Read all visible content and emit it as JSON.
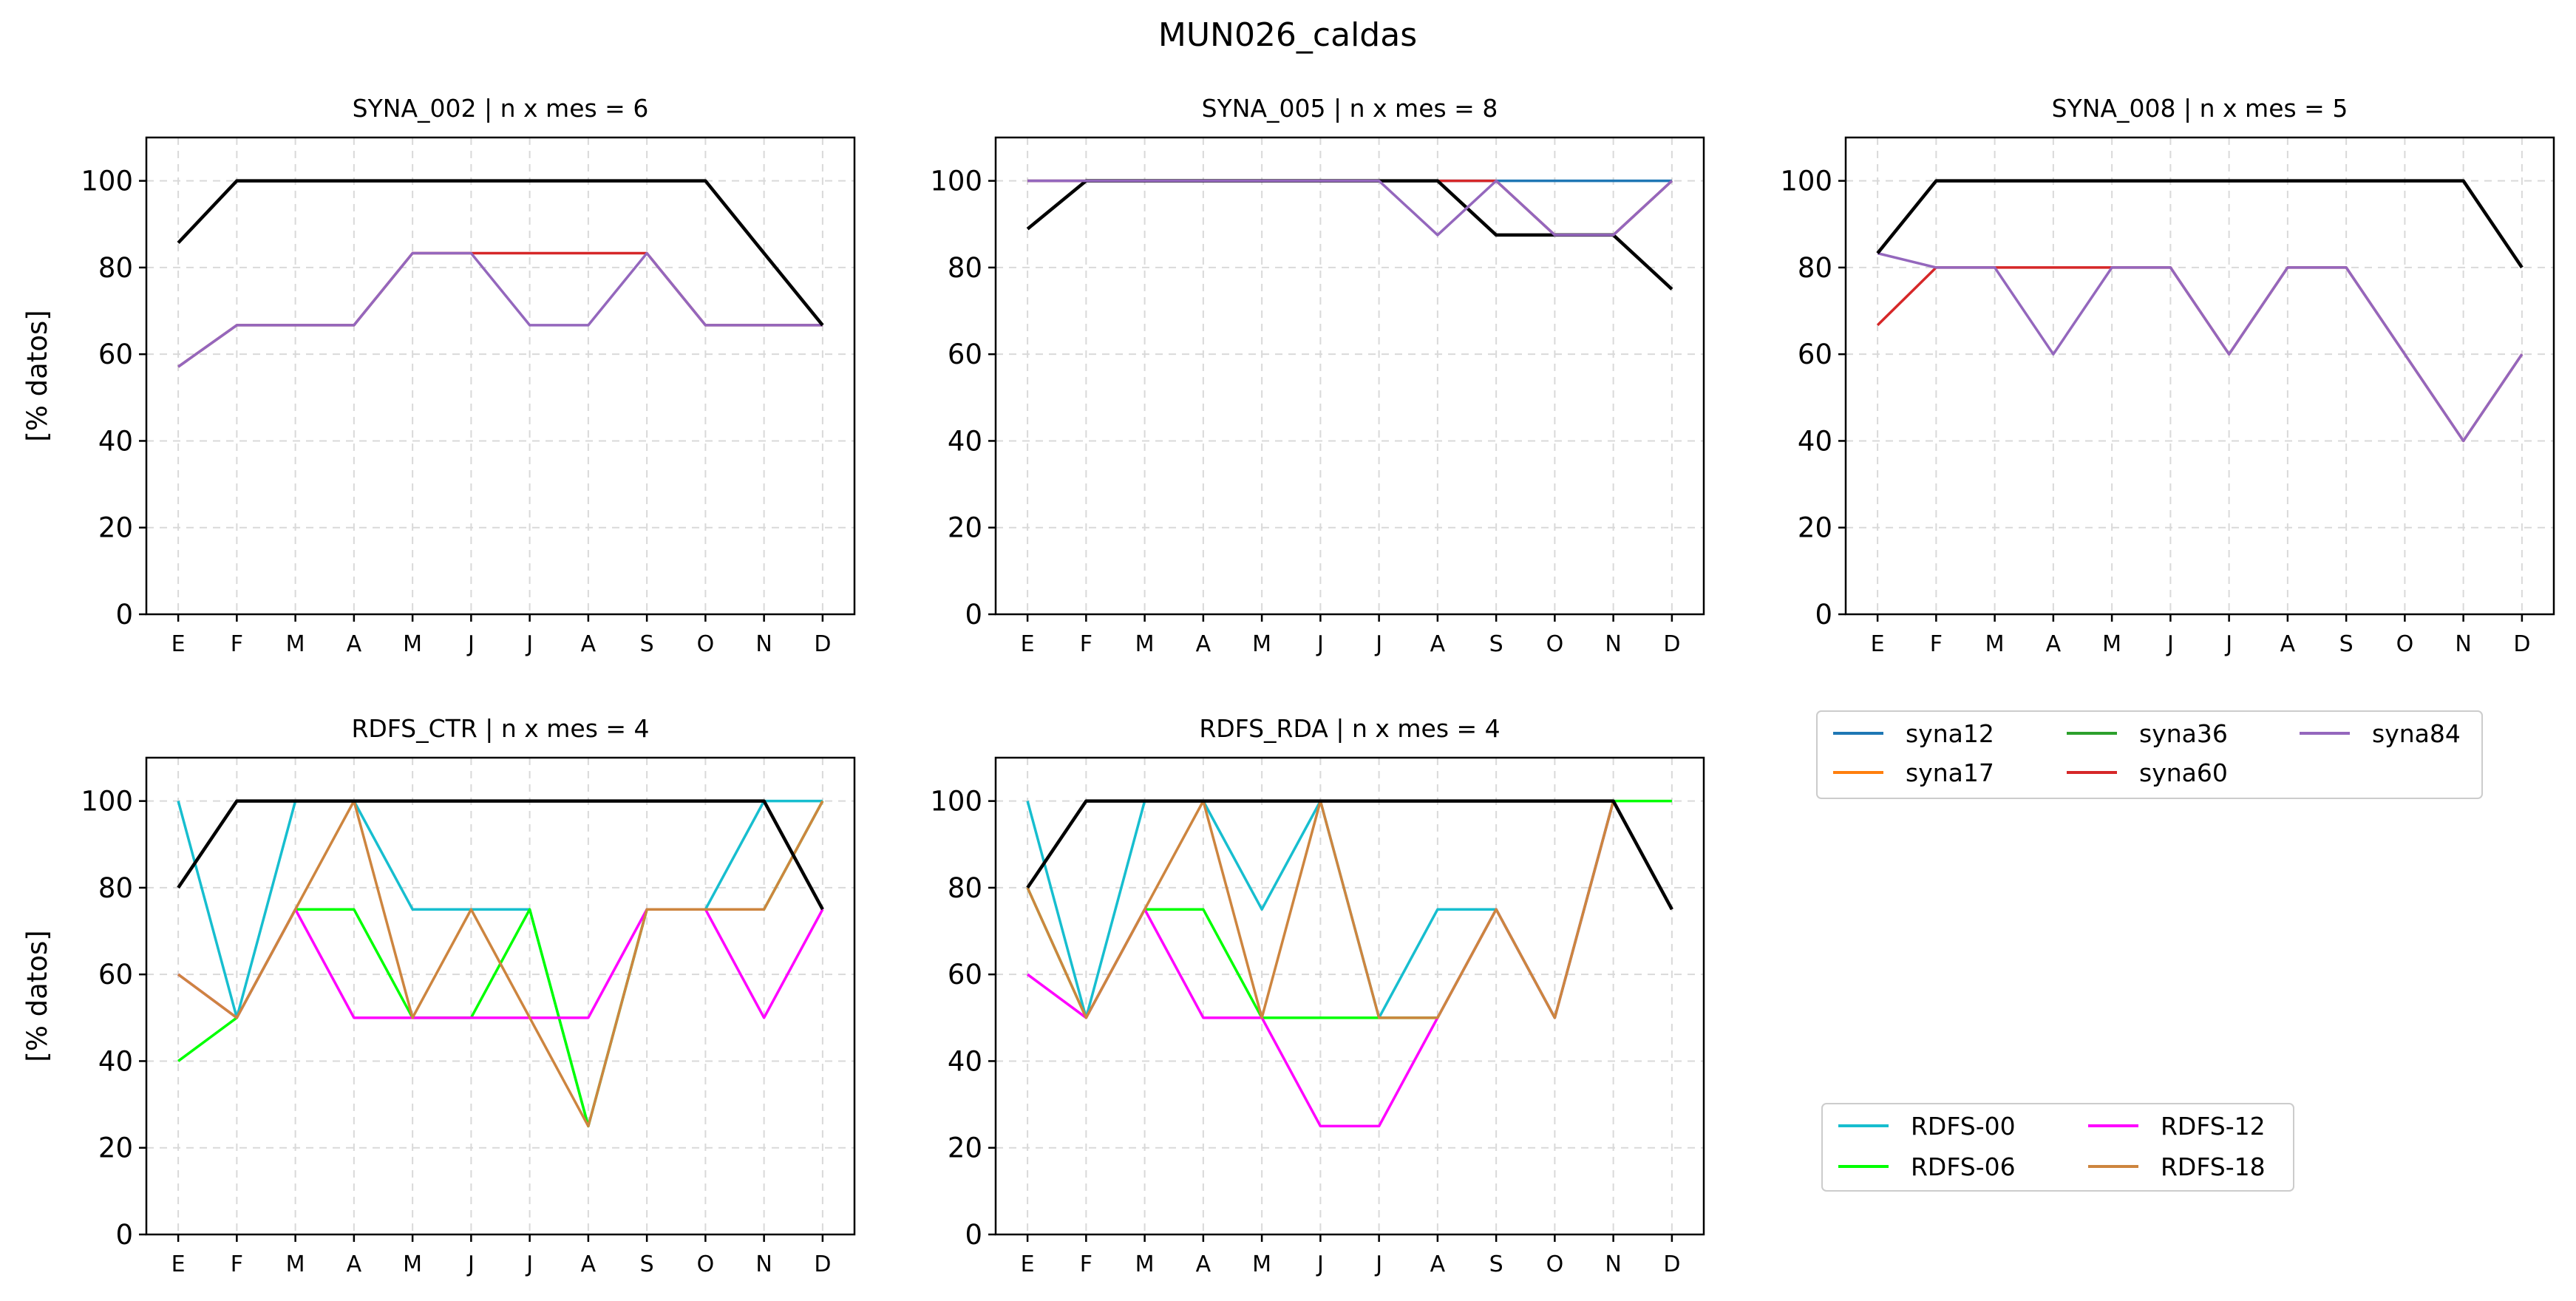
{
  "figure_title": "MUN026_caldas",
  "colors": {
    "obs": "#000000",
    "syna12": "#1f77b4",
    "syna17": "#ff7f0e",
    "syna36": "#2ca02c",
    "syna60": "#d62728",
    "syna84": "#9467bd",
    "RDFS-00": "#17becf",
    "RDFS-06": "#00ff00",
    "RDFS-12": "#ff00ff",
    "RDFS-18": "#cd853f"
  },
  "legends": {
    "syna": [
      "syna12",
      "syna17",
      "syna36",
      "syna60",
      "syna84"
    ],
    "rdfs": [
      "RDFS-00",
      "RDFS-06",
      "RDFS-12",
      "RDFS-18"
    ]
  },
  "chart_data": [
    {
      "type": "line",
      "title": "SYNA_002 | n x mes =  6",
      "xlabel": "",
      "ylabel": "[% datos]",
      "categories": [
        "E",
        "F",
        "M",
        "A",
        "M",
        "J",
        "J",
        "A",
        "S",
        "O",
        "N",
        "D"
      ],
      "ylim": [
        0,
        110
      ],
      "yticks": [
        0,
        20,
        40,
        60,
        80,
        100
      ],
      "grid": true,
      "series": [
        {
          "color_key": "syna60",
          "values": [
            57.1,
            66.7,
            66.7,
            66.7,
            83.3,
            83.3,
            83.3,
            83.3,
            83.3,
            66.7,
            66.7,
            66.7
          ]
        },
        {
          "color_key": "syna84",
          "values": [
            57.1,
            66.7,
            66.7,
            66.7,
            83.3,
            83.3,
            66.7,
            66.7,
            83.3,
            66.7,
            66.7,
            66.7
          ]
        },
        {
          "color_key": "obs",
          "values": [
            85.7,
            100,
            100,
            100,
            100,
            100,
            100,
            100,
            100,
            100,
            83.3,
            66.7
          ]
        }
      ]
    },
    {
      "type": "line",
      "title": "SYNA_005 | n x mes =  8",
      "xlabel": "",
      "ylabel": "",
      "categories": [
        "E",
        "F",
        "M",
        "A",
        "M",
        "J",
        "J",
        "A",
        "S",
        "O",
        "N",
        "D"
      ],
      "ylim": [
        0,
        110
      ],
      "yticks": [
        0,
        20,
        40,
        60,
        80,
        100
      ],
      "grid": true,
      "series": [
        {
          "color_key": "syna12",
          "values": [
            100,
            100,
            100,
            100,
            100,
            100,
            100,
            100,
            100,
            100,
            100,
            100
          ]
        },
        {
          "color_key": "syna60",
          "values": [
            100,
            100,
            100,
            100,
            100,
            100,
            100,
            100,
            100,
            87.5,
            87.5,
            100
          ]
        },
        {
          "color_key": "obs",
          "values": [
            88.9,
            100,
            100,
            100,
            100,
            100,
            100,
            100,
            87.5,
            87.5,
            87.5,
            75
          ]
        },
        {
          "color_key": "syna84",
          "values": [
            100,
            100,
            100,
            100,
            100,
            100,
            100,
            87.5,
            100,
            87.5,
            87.5,
            100
          ]
        }
      ]
    },
    {
      "type": "line",
      "title": "SYNA_008 | n x mes =  5",
      "xlabel": "",
      "ylabel": "",
      "categories": [
        "E",
        "F",
        "M",
        "A",
        "M",
        "J",
        "J",
        "A",
        "S",
        "O",
        "N",
        "D"
      ],
      "ylim": [
        0,
        110
      ],
      "yticks": [
        0,
        20,
        40,
        60,
        80,
        100
      ],
      "grid": true,
      "series": [
        {
          "color_key": "syna60",
          "values": [
            66.7,
            80,
            80,
            80,
            80,
            80,
            60,
            80,
            80,
            60,
            40,
            60
          ]
        },
        {
          "color_key": "syna84",
          "values": [
            83.3,
            80,
            80,
            60,
            80,
            80,
            60,
            80,
            80,
            60,
            40,
            60
          ]
        },
        {
          "color_key": "obs",
          "values": [
            83.3,
            100,
            100,
            100,
            100,
            100,
            100,
            100,
            100,
            100,
            100,
            80
          ]
        }
      ]
    },
    {
      "type": "line",
      "title": "RDFS_CTR | n x mes =  4",
      "xlabel": "",
      "ylabel": "[% datos]",
      "categories": [
        "E",
        "F",
        "M",
        "A",
        "M",
        "J",
        "J",
        "A",
        "S",
        "O",
        "N",
        "D"
      ],
      "ylim": [
        0,
        110
      ],
      "yticks": [
        0,
        20,
        40,
        60,
        80,
        100
      ],
      "grid": true,
      "series": [
        {
          "color_key": "RDFS-00",
          "values": [
            100,
            50,
            100,
            100,
            75,
            75,
            75,
            25,
            75,
            75,
            100,
            100
          ]
        },
        {
          "color_key": "RDFS-06",
          "values": [
            40,
            50,
            75,
            75,
            50,
            50,
            75,
            25,
            75,
            75,
            75,
            100
          ]
        },
        {
          "color_key": "RDFS-12",
          "values": [
            60,
            50,
            75,
            50,
            50,
            50,
            50,
            50,
            75,
            75,
            50,
            75
          ]
        },
        {
          "color_key": "RDFS-18",
          "values": [
            60,
            50,
            75,
            100,
            50,
            75,
            50,
            25,
            75,
            75,
            75,
            100
          ]
        },
        {
          "color_key": "obs",
          "values": [
            80,
            100,
            100,
            100,
            100,
            100,
            100,
            100,
            100,
            100,
            100,
            75
          ]
        }
      ]
    },
    {
      "type": "line",
      "title": "RDFS_RDA | n x mes =  4",
      "xlabel": "",
      "ylabel": "",
      "categories": [
        "E",
        "F",
        "M",
        "A",
        "M",
        "J",
        "J",
        "A",
        "S",
        "O",
        "N",
        "D"
      ],
      "ylim": [
        0,
        110
      ],
      "yticks": [
        0,
        20,
        40,
        60,
        80,
        100
      ],
      "grid": true,
      "series": [
        {
          "color_key": "RDFS-00",
          "values": [
            100,
            50,
            100,
            100,
            75,
            100,
            50,
            75,
            75,
            50,
            100,
            75
          ]
        },
        {
          "color_key": "RDFS-06",
          "values": [
            80,
            50,
            75,
            75,
            50,
            50,
            50,
            50,
            75,
            50,
            100,
            100
          ]
        },
        {
          "color_key": "RDFS-12",
          "values": [
            60,
            50,
            75,
            50,
            50,
            25,
            25,
            50,
            75,
            50,
            100,
            75
          ]
        },
        {
          "color_key": "RDFS-18",
          "values": [
            80,
            50,
            75,
            100,
            50,
            100,
            50,
            50,
            75,
            50,
            100,
            75
          ]
        },
        {
          "color_key": "obs",
          "values": [
            80,
            100,
            100,
            100,
            100,
            100,
            100,
            100,
            100,
            100,
            100,
            75
          ]
        }
      ]
    }
  ]
}
